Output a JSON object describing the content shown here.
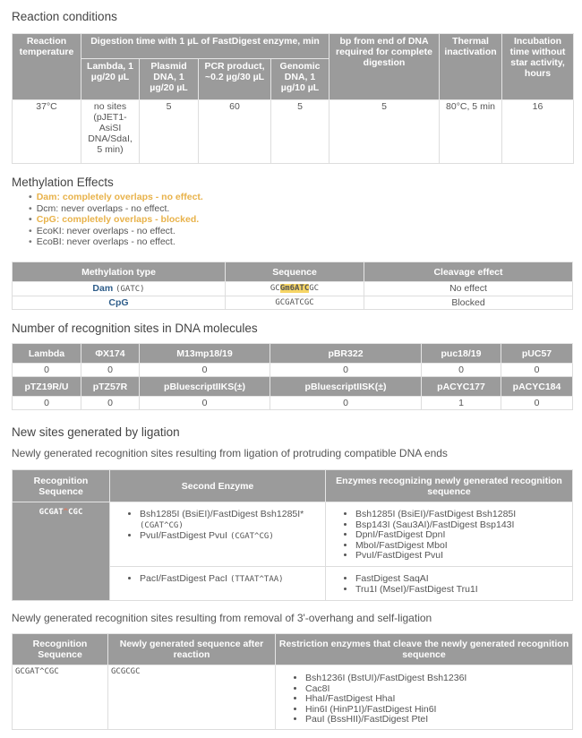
{
  "reaction": {
    "title": "Reaction conditions",
    "h_temp": "Reaction temperature",
    "h_digest": "Digestion time with 1 µL of FastDigest enzyme, min",
    "h_bp": "bp from end of DNA required for complete digestion",
    "h_thermal": "Thermal inactivation",
    "h_incub": "Incubation time without star activity, hours",
    "sub_headers": [
      "Lambda, 1 µg/20 µL",
      "Plasmid DNA, 1 µg/20 µL",
      "PCR product, ~0.2 µg/30 µL",
      "Genomic DNA, 1 µg/10 µL"
    ],
    "row": [
      "37°C",
      "no sites (pJET1-AsiSI DNA/SdaI, 5 min)",
      "5",
      "60",
      "5",
      "5",
      "80°C, 5 min",
      "16"
    ]
  },
  "methylation": {
    "title": "Methylation Effects",
    "items": [
      {
        "text": "Dam: completely overlaps - no effect.",
        "highlight": true
      },
      {
        "text": "Dcm: never overlaps - no effect.",
        "highlight": false
      },
      {
        "text": "CpG: completely overlaps - blocked.",
        "highlight": true
      },
      {
        "text": "EcoKI: never overlaps - no effect.",
        "highlight": false
      },
      {
        "text": "EcoBI: never overlaps - no effect.",
        "highlight": false
      }
    ],
    "headers": [
      "Methylation type",
      "Sequence",
      "Cleavage effect"
    ],
    "rows": [
      {
        "type": "Dam",
        "type_note": "(GATC)",
        "seq_pre": "GC",
        "seq_mark": "Gm6ATC",
        "seq_post": "GC",
        "effect": "No effect"
      },
      {
        "type": "CpG",
        "type_note": "",
        "seq_pre": "GCGATCGC",
        "seq_mark": "",
        "seq_post": "",
        "effect": "Blocked"
      }
    ],
    "colors": {
      "highlight": "#e8b24a",
      "link": "#2e5d8a",
      "mark": "#f6d565"
    }
  },
  "sites": {
    "title": "Number of recognition sites in DNA molecules",
    "row1_headers": [
      "Lambda",
      "ΦX174",
      "M13mp18/19",
      "pBR322",
      "puc18/19",
      "pUC57"
    ],
    "row1_values": [
      "0",
      "0",
      "0",
      "0",
      "0",
      "0"
    ],
    "row2_headers": [
      "pTZ19R/U",
      "pTZ57R",
      "pBluescriptIIKS(±)",
      "pBluescriptIISK(±)",
      "pACYC177",
      "pACYC184"
    ],
    "row2_values": [
      "0",
      "0",
      "0",
      "0",
      "1",
      "0"
    ]
  },
  "ligation": {
    "title": "New sites generated by ligation",
    "subtitle": "Newly generated recognition sites resulting from ligation of protruding compatible DNA ends",
    "headers": [
      "Recognition Sequence",
      "Second Enzyme",
      "Enzymes recognizing newly generated recognition sequence"
    ],
    "recognition_pre": "GCGAT",
    "recognition_caret": "^",
    "recognition_post": "CGC",
    "groups": [
      {
        "second": [
          {
            "name": "Bsh1285I (BsiEI)/FastDigest Bsh1285I*",
            "seq": "(CGAT^CG)",
            "seq_newline": true
          },
          {
            "name": "PvuI/FastDigest PvuI",
            "seq": "(CGAT^CG)",
            "seq_newline": false
          }
        ],
        "enzymes": [
          "Bsh1285I (BsiEI)/FastDigest Bsh1285I",
          "Bsp143I (Sau3AI)/FastDigest Bsp143I",
          "DpnI/FastDigest DpnI",
          "MboI/FastDigest MboI",
          "PvuI/FastDigest PvuI"
        ]
      },
      {
        "second": [
          {
            "name": "PacI/FastDigest PacI",
            "seq": "(TTAAT^TAA)",
            "seq_newline": false
          }
        ],
        "enzymes": [
          "FastDigest SaqAI",
          "Tru1I (MseI)/FastDigest Tru1I"
        ]
      }
    ]
  },
  "overhang": {
    "subtitle": "Newly generated recognition sites resulting from removal of 3'-overhang and self-ligation",
    "headers": [
      "Recognition Sequence",
      "Newly generated sequence after reaction",
      "Restriction enzymes that cleave the newly generated recognition sequence"
    ],
    "recognition": "GCGAT^CGC",
    "new_sequence": "GCGCGC",
    "enzymes": [
      "Bsh1236I (BstUI)/FastDigest Bsh1236I",
      "Cac8I",
      "HhaI/FastDigest HhaI",
      "Hin6I (HinP1I)/FastDigest Hin6I",
      "PauI (BssHII)/FastDigest PteI"
    ]
  }
}
